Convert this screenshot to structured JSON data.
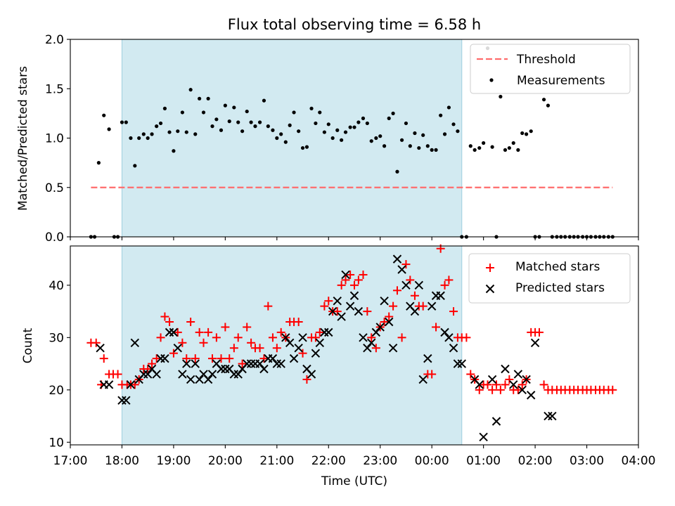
{
  "chart_data": [
    {
      "type": "scatter",
      "title": "Flux total observing time = 6.58 h",
      "xlabel": "",
      "ylabel": "Matched/Predicted stars",
      "ylim": [
        0,
        2
      ],
      "yticks": [
        "0.0",
        "0.5",
        "1.0",
        "1.5",
        "2.0"
      ],
      "shaded_span_hours": [
        18.0,
        24.58
      ],
      "threshold": {
        "name": "Threshold",
        "value": 0.5,
        "x_range": [
          17.4,
          27.5
        ],
        "color": "#ff6b6b"
      },
      "series": [
        {
          "name": "Measurements",
          "color": "#000000",
          "x": [
            17.4,
            17.47,
            17.55,
            17.65,
            17.75,
            17.85,
            17.92,
            18.0,
            18.08,
            18.17,
            18.25,
            18.33,
            18.42,
            18.5,
            18.58,
            18.67,
            18.75,
            18.83,
            18.92,
            19.0,
            19.08,
            19.17,
            19.25,
            19.33,
            19.42,
            19.5,
            19.58,
            19.67,
            19.75,
            19.83,
            19.92,
            20.0,
            20.08,
            20.17,
            20.25,
            20.33,
            20.42,
            20.5,
            20.58,
            20.67,
            20.75,
            20.83,
            20.92,
            21.0,
            21.08,
            21.17,
            21.25,
            21.33,
            21.42,
            21.5,
            21.58,
            21.67,
            21.75,
            21.83,
            21.92,
            22.0,
            22.08,
            22.17,
            22.25,
            22.33,
            22.42,
            22.5,
            22.58,
            22.67,
            22.75,
            22.83,
            22.92,
            23.0,
            23.08,
            23.17,
            23.25,
            23.33,
            23.42,
            23.5,
            23.58,
            23.67,
            23.75,
            23.83,
            23.92,
            24.0,
            24.08,
            24.17,
            24.25,
            24.33,
            24.42,
            24.5,
            24.58,
            24.67,
            24.75,
            24.83,
            24.92,
            25.0,
            25.08,
            25.17,
            25.25,
            25.33,
            25.42,
            25.5,
            25.58,
            25.67,
            25.75,
            25.83,
            25.92,
            26.0,
            26.08,
            26.17,
            26.25,
            26.33,
            26.42,
            26.5,
            26.58,
            26.67,
            26.75,
            26.83,
            26.92,
            27.0,
            27.08,
            27.17,
            27.25,
            27.33,
            27.42,
            27.5
          ],
          "values": [
            0,
            0,
            0.75,
            1.23,
            1.09,
            0,
            0,
            1.16,
            1.16,
            1.0,
            0.72,
            1.0,
            1.04,
            1.0,
            1.04,
            1.12,
            1.15,
            1.3,
            1.06,
            0.87,
            1.07,
            1.26,
            1.06,
            1.49,
            1.04,
            1.4,
            1.26,
            1.4,
            1.12,
            1.19,
            1.08,
            1.33,
            1.17,
            1.31,
            1.16,
            1.07,
            1.27,
            1.16,
            1.12,
            1.16,
            1.38,
            1.12,
            1.08,
            1.0,
            1.04,
            0.96,
            1.13,
            1.26,
            1.07,
            0.9,
            0.91,
            1.3,
            1.15,
            1.26,
            1.06,
            1.14,
            1.0,
            1.08,
            0.98,
            1.06,
            1.11,
            1.11,
            1.16,
            1.2,
            1.15,
            0.97,
            1.0,
            1.02,
            0.92,
            1.2,
            1.25,
            0.66,
            0.98,
            1.15,
            0.92,
            1.05,
            0.9,
            1.03,
            0.92,
            0.88,
            0.88,
            1.23,
            1.04,
            1.31,
            1.14,
            1.07,
            0,
            0,
            0.92,
            0.88,
            0.9,
            0.95,
            1.91,
            0.91,
            0,
            1.42,
            0.88,
            0.9,
            0.95,
            0.88,
            1.05,
            1.04,
            1.07,
            0,
            0,
            1.39,
            1.33,
            0,
            0,
            0,
            0,
            0,
            0,
            0,
            0,
            0,
            0,
            0,
            0,
            0,
            0,
            0
          ]
        }
      ]
    },
    {
      "type": "scatter",
      "title": "",
      "xlabel": "Time (UTC)",
      "ylabel": "Count",
      "ylim": [
        9.5,
        47.5
      ],
      "yticks": [
        "10",
        "20",
        "30",
        "40"
      ],
      "xlim": [
        17.0,
        28.0
      ],
      "xticks": [
        "17:00",
        "18:00",
        "19:00",
        "20:00",
        "21:00",
        "22:00",
        "23:00",
        "00:00",
        "01:00",
        "02:00",
        "03:00",
        "04:00"
      ],
      "shaded_span_hours": [
        18.0,
        24.58
      ],
      "series": [
        {
          "name": "Matched stars",
          "marker": "plus",
          "color": "#ff0000",
          "x": [
            17.4,
            17.5,
            17.6,
            17.65,
            17.75,
            17.83,
            17.92,
            18.0,
            18.1,
            18.17,
            18.25,
            18.33,
            18.42,
            18.5,
            18.58,
            18.67,
            18.75,
            18.83,
            18.92,
            19.0,
            19.08,
            19.17,
            19.25,
            19.33,
            19.42,
            19.5,
            19.58,
            19.67,
            19.75,
            19.83,
            19.92,
            20.0,
            20.08,
            20.17,
            20.25,
            20.33,
            20.42,
            20.5,
            20.58,
            20.67,
            20.75,
            20.83,
            20.92,
            21.0,
            21.08,
            21.17,
            21.25,
            21.33,
            21.42,
            21.5,
            21.58,
            21.67,
            21.75,
            21.83,
            21.92,
            22.0,
            22.08,
            22.17,
            22.25,
            22.33,
            22.42,
            22.5,
            22.58,
            22.67,
            22.75,
            22.83,
            22.92,
            23.0,
            23.08,
            23.17,
            23.25,
            23.33,
            23.42,
            23.5,
            23.58,
            23.67,
            23.75,
            23.83,
            23.92,
            24.0,
            24.08,
            24.17,
            24.25,
            24.33,
            24.42,
            24.5,
            24.58,
            24.67,
            24.75,
            24.83,
            24.92,
            25.0,
            25.08,
            25.17,
            25.25,
            25.33,
            25.42,
            25.5,
            25.58,
            25.67,
            25.75,
            25.83,
            25.92,
            26.0,
            26.08,
            26.17,
            26.25,
            26.33,
            26.42,
            26.5,
            26.58,
            26.67,
            26.75,
            26.83,
            26.92,
            27.0,
            27.08,
            27.17,
            27.25,
            27.33,
            27.42,
            27.5
          ],
          "values": [
            29,
            29,
            21,
            26,
            23,
            23,
            23,
            21,
            21,
            21,
            21,
            22,
            24,
            24,
            25,
            26,
            30,
            34,
            33,
            27,
            31,
            29,
            26,
            33,
            26,
            31,
            29,
            31,
            26,
            30,
            26,
            32,
            26,
            28,
            30,
            25,
            32,
            29,
            28,
            28,
            26,
            36,
            30,
            28,
            31,
            30,
            33,
            33,
            33,
            27,
            22,
            30,
            30,
            31,
            36,
            37,
            35,
            35,
            40,
            41,
            42,
            40,
            41,
            42,
            35,
            30,
            28,
            32,
            33,
            34,
            36,
            39,
            30,
            44,
            41,
            38,
            36,
            36,
            23,
            23,
            32,
            47,
            40,
            41,
            35,
            30,
            30,
            30,
            23,
            22,
            20,
            21,
            21,
            20,
            21,
            20,
            21,
            22,
            20,
            20,
            21,
            22,
            31,
            31,
            31,
            21,
            20,
            20,
            20,
            20,
            20,
            20,
            20,
            20,
            20,
            20,
            20,
            20,
            20,
            20,
            20,
            20
          ]
        },
        {
          "name": "Predicted stars",
          "marker": "x",
          "color": "#000000",
          "x": [
            17.58,
            17.65,
            17.75,
            18.0,
            18.08,
            18.17,
            18.25,
            18.33,
            18.42,
            18.5,
            18.58,
            18.67,
            18.75,
            18.83,
            18.92,
            19.0,
            19.08,
            19.17,
            19.25,
            19.33,
            19.42,
            19.5,
            19.58,
            19.67,
            19.75,
            19.83,
            19.92,
            20.0,
            20.08,
            20.17,
            20.25,
            20.33,
            20.42,
            20.5,
            20.58,
            20.67,
            20.75,
            20.83,
            20.92,
            21.0,
            21.08,
            21.17,
            21.25,
            21.33,
            21.42,
            21.5,
            21.58,
            21.67,
            21.75,
            21.83,
            21.92,
            22.0,
            22.08,
            22.17,
            22.25,
            22.33,
            22.42,
            22.5,
            22.58,
            22.67,
            22.75,
            22.83,
            22.92,
            23.0,
            23.08,
            23.17,
            23.25,
            23.33,
            23.42,
            23.5,
            23.58,
            23.67,
            23.75,
            23.83,
            23.92,
            24.0,
            24.08,
            24.17,
            24.25,
            24.33,
            24.42,
            24.5,
            24.58,
            24.83,
            24.92,
            25.0,
            25.17,
            25.25,
            25.42,
            25.58,
            25.67,
            25.75,
            25.83,
            25.92,
            26.0,
            26.25,
            26.33
          ],
          "values": [
            28,
            21,
            21,
            18,
            18,
            21,
            29,
            22,
            23,
            23,
            24,
            23,
            26,
            26,
            31,
            31,
            28,
            23,
            25,
            22,
            25,
            22,
            23,
            22,
            23,
            25,
            24,
            24,
            24,
            23,
            23,
            24,
            25,
            25,
            25,
            25,
            24,
            26,
            26,
            25,
            25,
            30,
            29,
            26,
            28,
            30,
            24,
            23,
            27,
            29,
            31,
            31,
            35,
            37,
            34,
            42,
            36,
            38,
            35,
            30,
            28,
            29,
            31,
            32,
            37,
            33,
            28,
            45,
            43,
            40,
            36,
            35,
            40,
            22,
            26,
            36,
            38,
            38,
            31,
            30,
            28,
            25,
            25,
            22,
            21,
            11,
            22,
            14,
            24,
            21,
            23,
            20,
            22,
            19,
            29,
            15,
            15
          ]
        }
      ]
    }
  ]
}
